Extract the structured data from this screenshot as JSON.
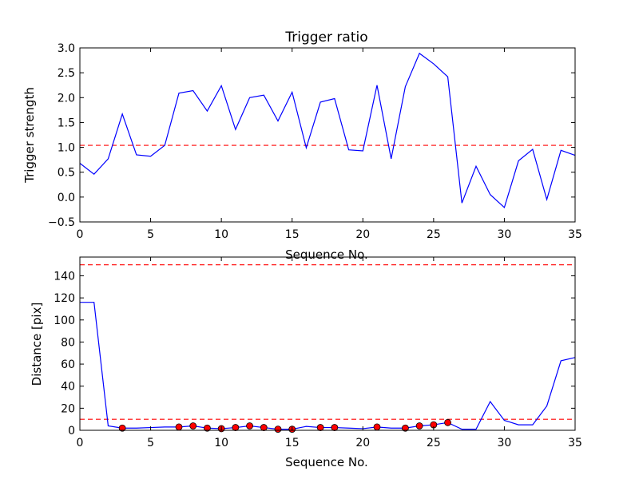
{
  "chart_data": [
    {
      "type": "line",
      "title": "Trigger ratio",
      "xlabel": "Sequence No.",
      "ylabel": "Trigger strength",
      "xlim": [
        0,
        35
      ],
      "ylim": [
        -0.5,
        3.0
      ],
      "xticks": [
        0,
        5,
        10,
        15,
        20,
        25,
        30,
        35
      ],
      "xtick_labels": [
        "0",
        "5",
        "10",
        "15",
        "20",
        "25",
        "30",
        "35"
      ],
      "yticks": [
        -0.5,
        0.0,
        0.5,
        1.0,
        1.5,
        2.0,
        2.5,
        3.0
      ],
      "ytick_labels": [
        "−0.5",
        "0.0",
        "0.5",
        "1.0",
        "1.5",
        "2.0",
        "2.5",
        "3.0"
      ],
      "grid": false,
      "line_color": "#0000ff",
      "threshold_color": "#ff0000",
      "x": [
        0,
        1,
        2,
        3,
        4,
        5,
        6,
        7,
        8,
        9,
        10,
        11,
        12,
        13,
        14,
        15,
        16,
        17,
        18,
        19,
        20,
        21,
        22,
        23,
        24,
        25,
        26,
        27,
        28,
        29,
        30,
        31,
        32,
        33,
        34,
        35
      ],
      "y": [
        0.68,
        0.46,
        0.77,
        1.67,
        0.85,
        0.82,
        1.04,
        2.09,
        2.14,
        1.73,
        2.24,
        1.36,
        2.0,
        2.05,
        1.53,
        2.11,
        0.99,
        1.91,
        1.98,
        0.95,
        0.93,
        2.25,
        0.77,
        2.22,
        2.89,
        2.68,
        2.42,
        -0.12,
        0.62,
        0.05,
        -0.21,
        0.73,
        0.96,
        -0.05,
        0.94,
        0.84
      ],
      "threshold": 1.04
    },
    {
      "type": "line",
      "title": "",
      "xlabel": "Sequence No.",
      "ylabel": "Distance [pix]",
      "xlim": [
        0,
        35
      ],
      "ylim": [
        0,
        157
      ],
      "xticks": [
        0,
        5,
        10,
        15,
        20,
        25,
        30,
        35
      ],
      "xtick_labels": [
        "0",
        "5",
        "10",
        "15",
        "20",
        "25",
        "30",
        "35"
      ],
      "yticks": [
        0,
        20,
        40,
        60,
        80,
        100,
        120,
        140
      ],
      "ytick_labels": [
        "0",
        "20",
        "40",
        "60",
        "80",
        "100",
        "120",
        "140"
      ],
      "grid": false,
      "line_color": "#0000ff",
      "marker_color": "#ff0000",
      "threshold_color": "#ff0000",
      "x": [
        0,
        1,
        2,
        3,
        4,
        5,
        6,
        7,
        8,
        9,
        10,
        11,
        12,
        13,
        14,
        15,
        16,
        17,
        18,
        19,
        20,
        21,
        22,
        23,
        24,
        25,
        26,
        27,
        28,
        29,
        30,
        31,
        32,
        33,
        34,
        35
      ],
      "y": [
        116,
        116,
        4,
        2,
        2,
        2.5,
        3,
        3,
        4,
        2,
        1.5,
        2.5,
        4,
        2.5,
        1,
        1,
        3.5,
        2.5,
        2.5,
        2,
        1.5,
        3,
        2,
        2,
        4,
        5,
        7,
        1,
        1,
        26,
        9,
        5,
        5,
        22,
        63,
        66
      ],
      "marker_x": [
        3,
        7,
        8,
        9,
        10,
        11,
        12,
        13,
        14,
        15,
        17,
        18,
        21,
        23,
        24,
        25,
        26
      ],
      "marker_y": [
        2,
        3,
        4,
        2,
        1.5,
        2.5,
        4,
        2.5,
        1,
        1,
        2.5,
        2.5,
        3,
        2,
        4,
        5,
        7
      ],
      "thresholds": [
        10,
        150
      ]
    }
  ]
}
